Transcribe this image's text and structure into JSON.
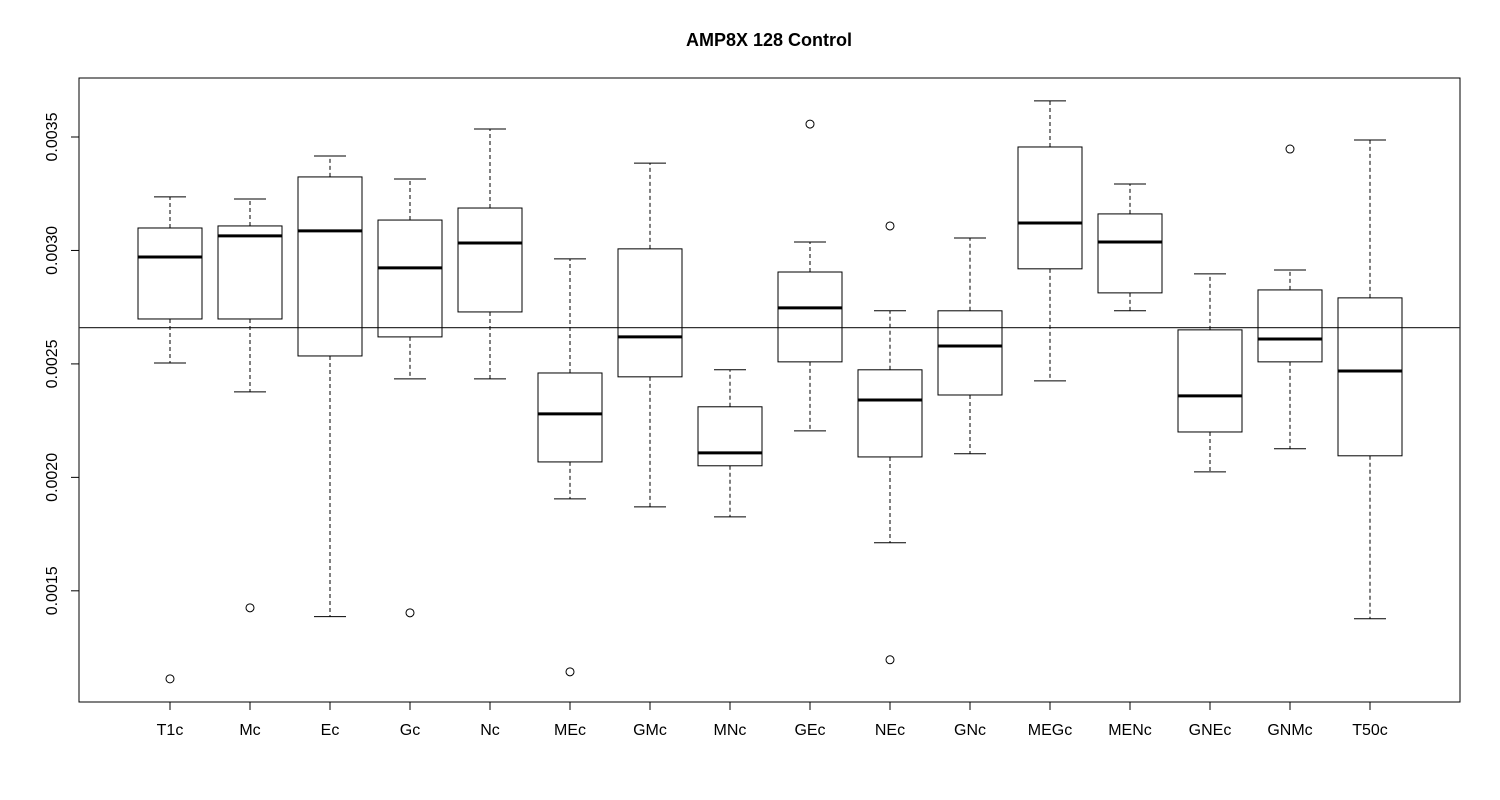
{
  "chart_data": {
    "type": "boxplot",
    "title": "AMP8X 128 Control",
    "categories": [
      "T1c",
      "Mc",
      "Ec",
      "Gc",
      "Nc",
      "MEc",
      "GMc",
      "MNc",
      "GEc",
      "NEc",
      "GNc",
      "MEGc",
      "MENc",
      "GNEc",
      "GNMc",
      "T50c"
    ],
    "boxes": [
      {
        "min": 0.002504,
        "q1": 0.002698,
        "median": 0.002971,
        "q3": 0.003099,
        "max": 0.003236,
        "outliers": [
          0.001112
        ]
      },
      {
        "min": 0.002377,
        "q1": 0.002698,
        "median": 0.003064,
        "q3": 0.003108,
        "max": 0.003227,
        "outliers": [
          0.001425
        ]
      },
      {
        "min": 0.001386,
        "q1": 0.002535,
        "median": 0.003086,
        "q3": 0.003324,
        "max": 0.003416,
        "outliers": []
      },
      {
        "min": 0.002434,
        "q1": 0.002619,
        "median": 0.002923,
        "q3": 0.003134,
        "max": 0.003315,
        "outliers": [
          0.001403
        ]
      },
      {
        "min": 0.002434,
        "q1": 0.002729,
        "median": 0.003033,
        "q3": 0.003187,
        "max": 0.003535,
        "outliers": []
      },
      {
        "min": 0.001905,
        "q1": 0.002068,
        "median": 0.00228,
        "q3": 0.00246,
        "max": 0.002963,
        "outliers": [
          0.001143
        ]
      },
      {
        "min": 0.00187,
        "q1": 0.002443,
        "median": 0.002619,
        "q3": 0.003007,
        "max": 0.003385,
        "outliers": []
      },
      {
        "min": 0.001826,
        "q1": 0.002051,
        "median": 0.002108,
        "q3": 0.002311,
        "max": 0.002474,
        "outliers": []
      },
      {
        "min": 0.002205,
        "q1": 0.002509,
        "median": 0.002747,
        "q3": 0.002905,
        "max": 0.003037,
        "outliers": [
          0.003557
        ]
      },
      {
        "min": 0.001712,
        "q1": 0.00209,
        "median": 0.002341,
        "q3": 0.002474,
        "max": 0.002734,
        "outliers": [
          0.003108,
          0.001196
        ]
      },
      {
        "min": 0.002104,
        "q1": 0.002363,
        "median": 0.002579,
        "q3": 0.002734,
        "max": 0.003055,
        "outliers": []
      },
      {
        "min": 0.002425,
        "q1": 0.002919,
        "median": 0.003121,
        "q3": 0.003456,
        "max": 0.003659,
        "outliers": []
      },
      {
        "min": 0.002734,
        "q1": 0.002813,
        "median": 0.003037,
        "q3": 0.003161,
        "max": 0.003293,
        "outliers": []
      },
      {
        "min": 0.002024,
        "q1": 0.0022,
        "median": 0.002359,
        "q3": 0.00265,
        "max": 0.002897,
        "outliers": []
      },
      {
        "min": 0.002126,
        "q1": 0.002509,
        "median": 0.00261,
        "q3": 0.002826,
        "max": 0.002914,
        "outliers": [
          0.003447
        ]
      },
      {
        "min": 0.001377,
        "q1": 0.002095,
        "median": 0.002469,
        "q3": 0.002791,
        "max": 0.003487,
        "outliers": []
      }
    ],
    "hline": 0.00266,
    "ylim": [
      0.00101,
      0.00376
    ],
    "yticks": [
      {
        "value": 0.0015,
        "label": "0.0015"
      },
      {
        "value": 0.002,
        "label": "0.0020"
      },
      {
        "value": 0.0025,
        "label": "0.0025"
      },
      {
        "value": 0.003,
        "label": "0.0030"
      },
      {
        "value": 0.0035,
        "label": "0.0035"
      }
    ]
  }
}
